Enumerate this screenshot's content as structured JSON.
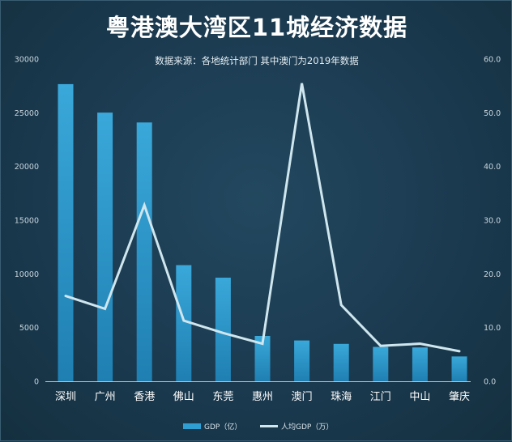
{
  "chart_data": {
    "type": "bar",
    "title": "粤港澳大湾区11城经济数据",
    "subtitle": "数据来源：各地统计部门  其中澳门为2019年数据",
    "categories": [
      "深圳",
      "广州",
      "香港",
      "佛山",
      "东莞",
      "惠州",
      "澳门",
      "珠海",
      "江门",
      "中山",
      "肇庆"
    ],
    "series": [
      {
        "name": "GDP（亿）",
        "type": "bar",
        "axis": "left",
        "color": "#2f9fd3",
        "values": [
          27670,
          25019,
          24100,
          10816,
          9650,
          4222,
          3800,
          3482,
          3201,
          3152,
          2312
        ]
      },
      {
        "name": "人均GDP（万）",
        "type": "line",
        "axis": "right",
        "color": "#cfe6ee",
        "values": [
          15.9,
          13.5,
          32.8,
          11.3,
          9.0,
          7.0,
          55.5,
          14.2,
          6.6,
          7.0,
          5.6
        ]
      }
    ],
    "yleft": {
      "min": 0,
      "max": 30000,
      "ticks": [
        "0",
        "5000",
        "10000",
        "15000",
        "20000",
        "25000",
        "30000"
      ]
    },
    "yright": {
      "min": 0,
      "max": 60,
      "ticks": [
        "0.0",
        "10.0",
        "20.0",
        "30.0",
        "40.0",
        "50.0",
        "60.0"
      ]
    },
    "legend_position": "bottom-center",
    "grid": false
  }
}
